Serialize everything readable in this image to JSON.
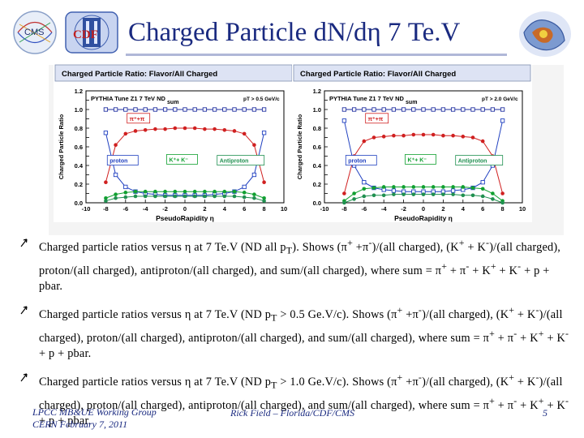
{
  "header": {
    "title": "Charged Particle d",
    "title_mid": "N/d",
    "title_eta": "η",
    "title_tail": " 7 Te.V",
    "logo_left_text": "CMS",
    "logo_cdf_text": "CDF"
  },
  "charts": [
    {
      "panel_title": "Charged Particle Ratio: Flavor/All Charged",
      "tune_label": "PYTHIA Tune Z1 7 TeV ND",
      "cut_label": "pT > 0.5 GeV/c",
      "ylabel": "Charged Particle Ratio",
      "xlabel": "PseudoRapidity η",
      "yticks": [
        "0.0",
        "0.1",
        "0.2",
        "0.3",
        "0.4",
        "0.5",
        "0.6",
        "0.7",
        "0.8",
        "0.9",
        "1.0",
        "1.1",
        "1.2"
      ],
      "xticks": [
        "-10",
        "-8",
        "-6",
        "-4",
        "-2",
        "0",
        "2",
        "4",
        "6",
        "8",
        "10"
      ],
      "labels": {
        "sum": "sum",
        "pion": "π⁺+π",
        "proton": "proton",
        "kaon": "K⁺+ K⁻",
        "antiproton": "Antiproton"
      }
    },
    {
      "panel_title": "Charged Particle Ratio: Flavor/All Charged",
      "tune_label": "PYTHIA Tune Z1 7 TeV ND",
      "cut_label": "pT > 2.0 GeV/c",
      "ylabel": "Charged Particle Ratio",
      "xlabel": "PseudoRapidity η",
      "yticks": [
        "0.0",
        "0.1",
        "0.2",
        "0.3",
        "0.4",
        "0.5",
        "0.6",
        "0.7",
        "0.8",
        "0.9",
        "1.0",
        "1.1",
        "1.2"
      ],
      "xticks": [
        "-10",
        "-8",
        "-6",
        "-4",
        "-2",
        "0",
        "2",
        "4",
        "6",
        "8",
        "10"
      ],
      "labels": {
        "sum": "sum",
        "pion": "π⁺+π",
        "proton": "proton",
        "kaon": "K⁺+ K⁻",
        "antiproton": "Antiproton"
      }
    }
  ],
  "chart_data": [
    {
      "type": "line",
      "title": "Charged Particle Ratio: Flavor/All Charged",
      "xlabel": "PseudoRapidity η",
      "ylabel": "Charged Particle Ratio",
      "xlim": [
        -10,
        10
      ],
      "ylim": [
        0.0,
        1.2
      ],
      "x": [
        -8.0,
        -7.0,
        -6.0,
        -5.0,
        -4.0,
        -3.0,
        -2.0,
        -1.0,
        0.0,
        1.0,
        2.0,
        3.0,
        4.0,
        5.0,
        6.0,
        7.0,
        8.0
      ],
      "series": [
        {
          "name": "sum",
          "color": "#2030a0",
          "values": [
            1.0,
            1.0,
            1.0,
            1.0,
            1.0,
            1.0,
            1.0,
            1.0,
            1.0,
            1.0,
            1.0,
            1.0,
            1.0,
            1.0,
            1.0,
            1.0,
            1.0
          ]
        },
        {
          "name": "π⁺+π",
          "color": "#d02020",
          "values": [
            0.22,
            0.62,
            0.74,
            0.77,
            0.78,
            0.79,
            0.79,
            0.8,
            0.8,
            0.8,
            0.79,
            0.79,
            0.78,
            0.77,
            0.74,
            0.62,
            0.22
          ]
        },
        {
          "name": "proton",
          "color": "#2040c0",
          "values": [
            0.75,
            0.3,
            0.17,
            0.12,
            0.1,
            0.09,
            0.08,
            0.08,
            0.08,
            0.08,
            0.08,
            0.09,
            0.1,
            0.12,
            0.17,
            0.3,
            0.75
          ]
        },
        {
          "name": "K⁺+ K⁻",
          "color": "#10a030",
          "values": [
            0.05,
            0.09,
            0.11,
            0.12,
            0.12,
            0.12,
            0.12,
            0.12,
            0.12,
            0.12,
            0.12,
            0.12,
            0.12,
            0.12,
            0.11,
            0.09,
            0.05
          ]
        },
        {
          "name": "Antiproton",
          "color": "#209050",
          "values": [
            0.02,
            0.05,
            0.06,
            0.07,
            0.07,
            0.07,
            0.07,
            0.07,
            0.07,
            0.07,
            0.07,
            0.07,
            0.07,
            0.07,
            0.06,
            0.05,
            0.02
          ]
        }
      ]
    },
    {
      "type": "line",
      "title": "Charged Particle Ratio: Flavor/All Charged",
      "xlabel": "PseudoRapidity η",
      "ylabel": "Charged Particle Ratio",
      "xlim": [
        -10,
        10
      ],
      "ylim": [
        0.0,
        1.2
      ],
      "x": [
        -8.0,
        -7.0,
        -6.0,
        -5.0,
        -4.0,
        -3.0,
        -2.0,
        -1.0,
        0.0,
        1.0,
        2.0,
        3.0,
        4.0,
        5.0,
        6.0,
        7.0,
        8.0
      ],
      "series": [
        {
          "name": "sum",
          "color": "#2030a0",
          "values": [
            1.0,
            1.0,
            1.0,
            1.0,
            1.0,
            1.0,
            1.0,
            1.0,
            1.0,
            1.0,
            1.0,
            1.0,
            1.0,
            1.0,
            1.0,
            1.0,
            1.0
          ]
        },
        {
          "name": "π⁺+π",
          "color": "#d02020",
          "values": [
            0.1,
            0.5,
            0.66,
            0.7,
            0.71,
            0.72,
            0.72,
            0.73,
            0.73,
            0.73,
            0.72,
            0.72,
            0.71,
            0.7,
            0.66,
            0.5,
            0.1
          ]
        },
        {
          "name": "proton",
          "color": "#2040c0",
          "values": [
            0.88,
            0.4,
            0.22,
            0.16,
            0.14,
            0.13,
            0.12,
            0.12,
            0.12,
            0.12,
            0.12,
            0.13,
            0.14,
            0.16,
            0.22,
            0.4,
            0.88
          ]
        },
        {
          "name": "K⁺+ K⁻",
          "color": "#10a030",
          "values": [
            0.02,
            0.1,
            0.15,
            0.16,
            0.17,
            0.17,
            0.17,
            0.17,
            0.17,
            0.17,
            0.17,
            0.17,
            0.17,
            0.16,
            0.15,
            0.1,
            0.02
          ]
        },
        {
          "name": "Antiproton",
          "color": "#209050",
          "values": [
            0.0,
            0.04,
            0.07,
            0.08,
            0.08,
            0.09,
            0.09,
            0.09,
            0.09,
            0.09,
            0.09,
            0.09,
            0.08,
            0.08,
            0.07,
            0.04,
            0.0
          ]
        }
      ]
    }
  ],
  "bullets": [
    {
      "pre": "Charged particle ratios versus ",
      "eta": "η",
      "mid": " at 7 Te.V (ND all p",
      "sub": "T",
      "post": "). Shows (π",
      "sup1": "+",
      "p2": " +π",
      "sup2": "-",
      "rest": ")/(all charged), (K",
      "sup3": "+",
      "p3": " + K",
      "sup4": "-",
      "tail": ")/(all charged), proton/(all charged), antiproton/(all charged), and sum/(all charged), where sum = π",
      "sup5": "+",
      "p4": " + π",
      "sup6": "-",
      "p5": " + K",
      "sup7": "+",
      "p6": " + K",
      "sup8": "-",
      "end": " + p + pbar."
    },
    {
      "pre": "Charged particle ratios versus ",
      "eta": "η",
      "mid": " at 7 Te.V (ND p",
      "sub": "T",
      "post": " > 0.5 Ge.V/c). Shows (π",
      "sup1": "+",
      "p2": " +π",
      "sup2": "-",
      "rest": ")/(all charged), (K",
      "sup3": "+",
      "p3": " + K",
      "sup4": "-",
      "tail": ")/(all charged), proton/(all charged), antiproton/(all charged), and sum/(all charged), where sum = π",
      "sup5": "+",
      "p4": " + π",
      "sup6": "-",
      "p5": " + K",
      "sup7": "+",
      "p6": " + K",
      "sup8": "-",
      "end": " + p + pbar."
    },
    {
      "pre": "Charged particle ratios versus ",
      "eta": "η",
      "mid": " at 7 Te.V (ND p",
      "sub": "T",
      "post": " > 1.0 Ge.V/c). Shows (π",
      "sup1": "+",
      "p2": " +π",
      "sup2": "-",
      "rest": ")/(all charged), (K",
      "sup3": "+",
      "p3": " + K",
      "sup4": "-",
      "tail": ")/(all charged), proton/(all charged), antiproton/(all charged), and sum/(all charged), where sum = π",
      "sup5": "+",
      "p4": " + π",
      "sup6": "-",
      "p5": " + K",
      "sup7": "+",
      "p6": " + K",
      "sup8": "-",
      "end": " + p + pbar."
    }
  ],
  "footer": {
    "line1": "LPCC MB&UE Working Group",
    "line2": "CERN February 7, 2011",
    "author": "Rick Field – Florida/CDF/CMS",
    "page": "5"
  },
  "colors": {
    "title": "#1a2a80",
    "panel_header": "#dde3f4",
    "accent": "#1a2a80"
  }
}
